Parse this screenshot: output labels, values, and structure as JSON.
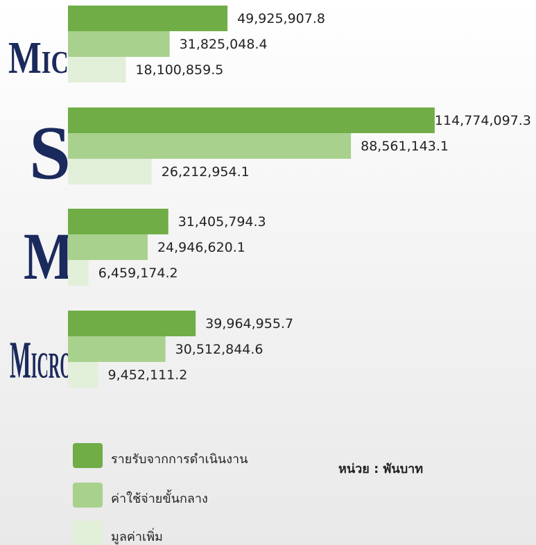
{
  "chart_data": {
    "type": "bar",
    "orientation": "horizontal",
    "categories": [
      "Micro",
      "S",
      "M",
      "Micro"
    ],
    "series": [
      {
        "name": "รายรับจากการดำเนินงาน",
        "color": "#70ad47",
        "values": [
          49925907.8,
          114774097.3,
          31405794.3,
          39964955.7
        ],
        "value_labels": [
          "49,925,907.8",
          "114,774,097.3",
          "31,405,794.3",
          "39,964,955.7"
        ]
      },
      {
        "name": "ค่าใช้จ่ายขั้นกลาง",
        "color": "#a9d18e",
        "values": [
          31825048.4,
          88561143.1,
          24946620.1,
          30512844.6
        ],
        "value_labels": [
          "31,825,048.4",
          "88,561,143.1",
          "24,946,620.1",
          "30,512,844.6"
        ]
      },
      {
        "name": "มูลค่าเพิ่ม",
        "color": "#e2efd9",
        "values": [
          18100859.5,
          26212954.1,
          6459174.2,
          9452111.2
        ],
        "value_labels": [
          "18,100,859.5",
          "26,212,954.1",
          "6,459,174.2",
          "9,452,111.2"
        ]
      }
    ],
    "xlim": [
      0,
      120000000
    ],
    "annotation": "หน่วย : พันบาท"
  }
}
